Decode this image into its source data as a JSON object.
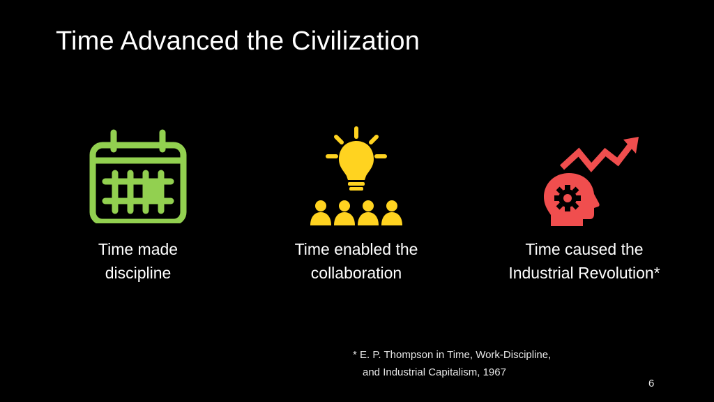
{
  "slide": {
    "title": "Time Advanced the Civilization",
    "page_number": "6"
  },
  "columns": [
    {
      "icon": "calendar-icon",
      "color": "#92d050",
      "caption_line1": "Time made",
      "caption_line2": "discipline"
    },
    {
      "icon": "lightbulb-team-icon",
      "color": "#ffd320",
      "caption_line1": "Time enabled the",
      "caption_line2": "collaboration"
    },
    {
      "icon": "head-gear-growth-icon",
      "color": "#f04e4e",
      "caption_line1": "Time caused the",
      "caption_line2": "Industrial Revolution*"
    }
  ],
  "footnote": {
    "line1": "* E. P. Thompson in Time, Work-Discipline,",
    "line2": "and Industrial Capitalism, 1967"
  }
}
